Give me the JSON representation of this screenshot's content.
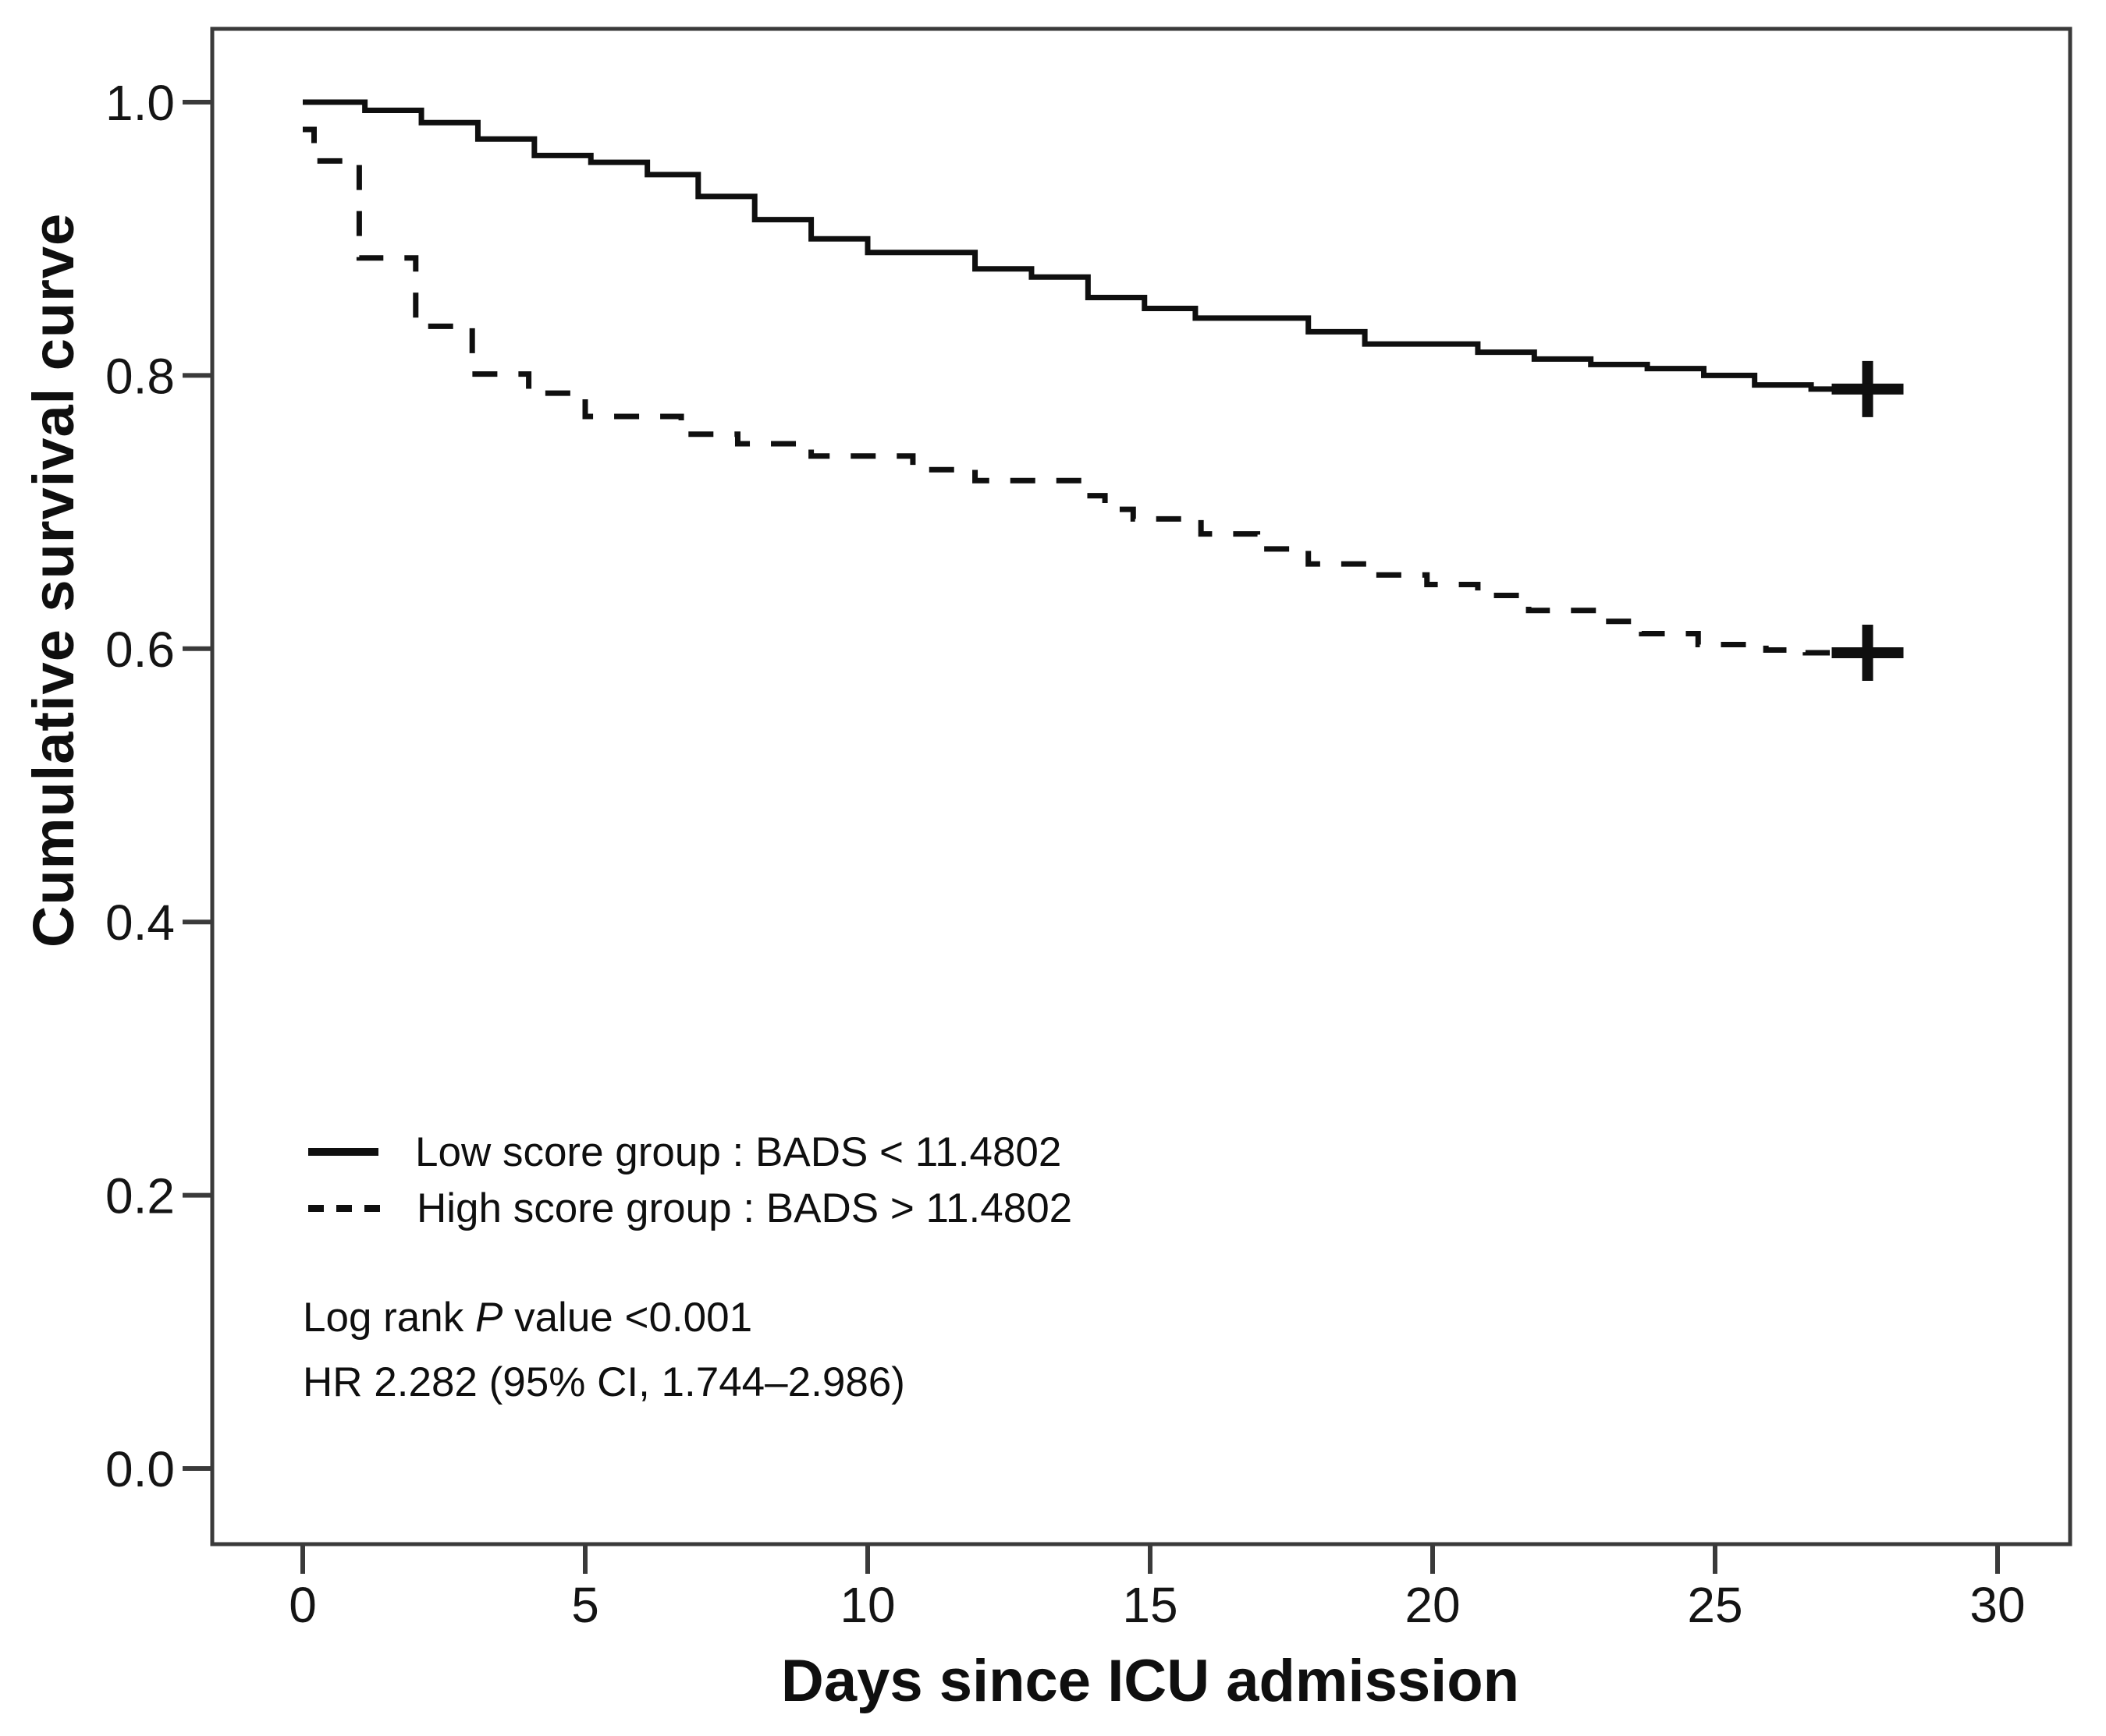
{
  "chart_data": {
    "type": "line",
    "subtype": "kaplan-meier-step",
    "title": "",
    "xlabel": "Days since ICU admission",
    "ylabel": "Cumulative survival curve",
    "xticks": [
      0,
      5,
      10,
      15,
      20,
      25,
      30
    ],
    "yticks": [
      0.0,
      0.2,
      0.4,
      0.6,
      0.8,
      1.0
    ],
    "xlim": [
      0,
      30
    ],
    "ylim": [
      0.0,
      1.0
    ],
    "grid": "off",
    "legend_position": "inside-lower-left",
    "line_color": "#0f0f0f",
    "series": [
      {
        "name": "Low score group : BADS < 11.4802",
        "line": "solid",
        "censor_day": 27.7,
        "censor_value": 0.79,
        "end_day": 28.3,
        "steps": [
          [
            0,
            1.0
          ],
          [
            1.1,
            0.994
          ],
          [
            2.1,
            0.985
          ],
          [
            3.1,
            0.973
          ],
          [
            4.1,
            0.961
          ],
          [
            5.1,
            0.956
          ],
          [
            6.1,
            0.947
          ],
          [
            7.0,
            0.931
          ],
          [
            8.0,
            0.914
          ],
          [
            9.0,
            0.9
          ],
          [
            10.0,
            0.89
          ],
          [
            11.9,
            0.878
          ],
          [
            12.9,
            0.872
          ],
          [
            13.9,
            0.857
          ],
          [
            14.9,
            0.849
          ],
          [
            15.8,
            0.842
          ],
          [
            17.8,
            0.832
          ],
          [
            18.8,
            0.823
          ],
          [
            20.8,
            0.817
          ],
          [
            21.8,
            0.812
          ],
          [
            22.8,
            0.808
          ],
          [
            23.8,
            0.805
          ],
          [
            24.8,
            0.8
          ],
          [
            25.7,
            0.793
          ],
          [
            26.7,
            0.79
          ]
        ]
      },
      {
        "name": "High score group : BADS > 11.4802",
        "line": "dashed",
        "censor_day": 27.7,
        "censor_value": 0.597,
        "end_day": 28.3,
        "steps": [
          [
            0,
            0.98
          ],
          [
            0.2,
            0.957
          ],
          [
            1.0,
            0.886
          ],
          [
            2.0,
            0.836
          ],
          [
            3.0,
            0.801
          ],
          [
            4.0,
            0.787
          ],
          [
            5.0,
            0.77
          ],
          [
            6.7,
            0.757
          ],
          [
            7.7,
            0.75
          ],
          [
            9.0,
            0.741
          ],
          [
            10.8,
            0.731
          ],
          [
            11.9,
            0.723
          ],
          [
            13.8,
            0.712
          ],
          [
            14.2,
            0.702
          ],
          [
            14.7,
            0.695
          ],
          [
            15.9,
            0.684
          ],
          [
            16.9,
            0.673
          ],
          [
            17.8,
            0.662
          ],
          [
            19.0,
            0.654
          ],
          [
            19.9,
            0.647
          ],
          [
            20.8,
            0.639
          ],
          [
            21.7,
            0.628
          ],
          [
            23.0,
            0.62
          ],
          [
            23.7,
            0.611
          ],
          [
            24.7,
            0.603
          ],
          [
            25.9,
            0.599
          ],
          [
            26.6,
            0.597
          ]
        ]
      }
    ],
    "annotations": {
      "logrank_prefix": "Log rank ",
      "p_symbol": "P",
      "logrank_suffix": " value <0.001",
      "hr_text": "HR 2.282 (95% CI, 1.744–2.986)"
    }
  }
}
